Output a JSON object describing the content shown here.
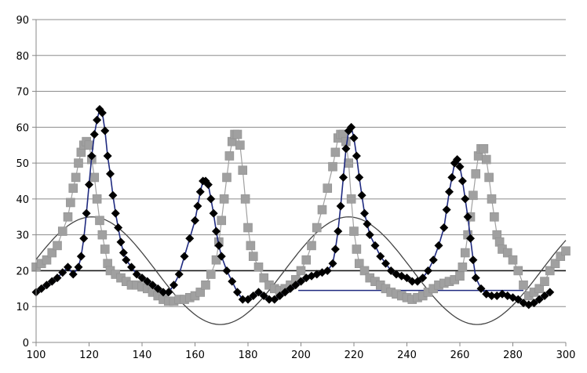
{
  "chart_data": {
    "type": "scatter",
    "xlim": [
      100,
      300
    ],
    "ylim": [
      0,
      90
    ],
    "x_ticks": [
      "100",
      "120",
      "140",
      "160",
      "180",
      "200",
      "220",
      "240",
      "260",
      "280",
      "300"
    ],
    "y_ticks": [
      "0",
      "10",
      "20",
      "30",
      "40",
      "50",
      "60",
      "70",
      "80",
      "90"
    ],
    "grid": true,
    "legend": "none",
    "colors": {
      "axis": "#888888",
      "grid": "#8c8c8c",
      "sine": "#444444",
      "threshold": "#1a1a1a",
      "series_a": "#000000",
      "series_a_line": "#1f2a80",
      "series_b": "#a0a0a0"
    },
    "sine_curve": {
      "mean": 20,
      "amplitude": 15,
      "period": 97,
      "phase_x": 121,
      "x_range": [
        100,
        300
      ]
    },
    "threshold_line": {
      "y": 20,
      "x_range": [
        100,
        300
      ]
    },
    "step_line": {
      "points": [
        [
          199,
          14.5
        ],
        [
          245,
          14.5
        ],
        [
          260,
          14.5
        ],
        [
          284,
          14.5
        ]
      ]
    },
    "series": [
      {
        "marker": "diamond",
        "points": [
          [
            100,
            14
          ],
          [
            102,
            15
          ],
          [
            104,
            16
          ],
          [
            106,
            17
          ],
          [
            108,
            18
          ],
          [
            110,
            19.5
          ],
          [
            112,
            21
          ],
          [
            114,
            19
          ],
          [
            116,
            21
          ],
          [
            117,
            24
          ],
          [
            118,
            29
          ],
          [
            119,
            36
          ],
          [
            120,
            44
          ],
          [
            121,
            52
          ],
          [
            122,
            58
          ],
          [
            123,
            62
          ],
          [
            124,
            65
          ],
          [
            125,
            64
          ],
          [
            126,
            59
          ],
          [
            127,
            52
          ],
          [
            128,
            47
          ],
          [
            129,
            41
          ],
          [
            130,
            36
          ],
          [
            131,
            32
          ],
          [
            132,
            28
          ],
          [
            133,
            25
          ],
          [
            134,
            23
          ],
          [
            136,
            21
          ],
          [
            138,
            19
          ],
          [
            140,
            18
          ],
          [
            142,
            17
          ],
          [
            144,
            16
          ],
          [
            146,
            15
          ],
          [
            148,
            14
          ],
          [
            150,
            14
          ],
          [
            152,
            16
          ],
          [
            154,
            19
          ],
          [
            156,
            24
          ],
          [
            158,
            29
          ],
          [
            160,
            34
          ],
          [
            161,
            38
          ],
          [
            162,
            42
          ],
          [
            163,
            45
          ],
          [
            164,
            45
          ],
          [
            165,
            44
          ],
          [
            166,
            40
          ],
          [
            167,
            36
          ],
          [
            168,
            31
          ],
          [
            169,
            27
          ],
          [
            170,
            24
          ],
          [
            172,
            20
          ],
          [
            174,
            17
          ],
          [
            176,
            14
          ],
          [
            178,
            12
          ],
          [
            180,
            12
          ],
          [
            182,
            13
          ],
          [
            184,
            14
          ],
          [
            186,
            13
          ],
          [
            188,
            12
          ],
          [
            190,
            12
          ],
          [
            192,
            13
          ],
          [
            194,
            14
          ],
          [
            196,
            15
          ],
          [
            198,
            16
          ],
          [
            200,
            17
          ],
          [
            202,
            18
          ],
          [
            204,
            18.5
          ],
          [
            206,
            19
          ],
          [
            208,
            19.5
          ],
          [
            210,
            20
          ],
          [
            212,
            22
          ],
          [
            213,
            26
          ],
          [
            214,
            31
          ],
          [
            215,
            38
          ],
          [
            216,
            46
          ],
          [
            217,
            54
          ],
          [
            218,
            59
          ],
          [
            219,
            60
          ],
          [
            220,
            57
          ],
          [
            221,
            52
          ],
          [
            222,
            46
          ],
          [
            223,
            41
          ],
          [
            224,
            36
          ],
          [
            225,
            33
          ],
          [
            226,
            30
          ],
          [
            228,
            27
          ],
          [
            230,
            24
          ],
          [
            232,
            22
          ],
          [
            234,
            20
          ],
          [
            236,
            19
          ],
          [
            238,
            18.5
          ],
          [
            240,
            18
          ],
          [
            242,
            17
          ],
          [
            244,
            17
          ],
          [
            246,
            18
          ],
          [
            248,
            20
          ],
          [
            250,
            23
          ],
          [
            252,
            27
          ],
          [
            254,
            32
          ],
          [
            255,
            37
          ],
          [
            256,
            42
          ],
          [
            257,
            46
          ],
          [
            258,
            50
          ],
          [
            259,
            51
          ],
          [
            260,
            49
          ],
          [
            261,
            45
          ],
          [
            262,
            40
          ],
          [
            263,
            35
          ],
          [
            264,
            29
          ],
          [
            265,
            23
          ],
          [
            266,
            18
          ],
          [
            268,
            15
          ],
          [
            270,
            13.5
          ],
          [
            272,
            13
          ],
          [
            274,
            13
          ],
          [
            276,
            13.5
          ],
          [
            278,
            13
          ],
          [
            280,
            12.5
          ],
          [
            282,
            12
          ],
          [
            284,
            11
          ],
          [
            286,
            10.5
          ],
          [
            288,
            11
          ],
          [
            290,
            12
          ],
          [
            292,
            13
          ],
          [
            294,
            14
          ]
        ]
      },
      {
        "marker": "square",
        "points": [
          [
            100,
            21
          ],
          [
            102,
            22
          ],
          [
            104,
            23
          ],
          [
            106,
            25
          ],
          [
            108,
            27
          ],
          [
            110,
            31
          ],
          [
            112,
            35
          ],
          [
            113,
            39
          ],
          [
            114,
            43
          ],
          [
            115,
            46
          ],
          [
            116,
            50
          ],
          [
            117,
            53
          ],
          [
            118,
            55
          ],
          [
            119,
            56
          ],
          [
            120,
            55
          ],
          [
            121,
            51
          ],
          [
            122,
            46
          ],
          [
            123,
            40
          ],
          [
            124,
            34
          ],
          [
            125,
            30
          ],
          [
            126,
            26
          ],
          [
            127,
            22
          ],
          [
            128,
            20
          ],
          [
            130,
            19
          ],
          [
            132,
            18
          ],
          [
            134,
            17
          ],
          [
            136,
            16
          ],
          [
            138,
            16
          ],
          [
            140,
            15.5
          ],
          [
            142,
            15
          ],
          [
            144,
            14
          ],
          [
            146,
            13
          ],
          [
            148,
            12
          ],
          [
            150,
            11.5
          ],
          [
            152,
            11.5
          ],
          [
            154,
            12
          ],
          [
            156,
            12
          ],
          [
            158,
            12.5
          ],
          [
            160,
            13
          ],
          [
            162,
            14
          ],
          [
            164,
            16
          ],
          [
            166,
            19
          ],
          [
            168,
            23
          ],
          [
            169,
            28
          ],
          [
            170,
            34
          ],
          [
            171,
            40
          ],
          [
            172,
            46
          ],
          [
            173,
            52
          ],
          [
            174,
            56
          ],
          [
            175,
            58
          ],
          [
            176,
            58
          ],
          [
            177,
            55
          ],
          [
            178,
            48
          ],
          [
            179,
            40
          ],
          [
            180,
            32
          ],
          [
            181,
            27
          ],
          [
            182,
            24
          ],
          [
            184,
            21
          ],
          [
            186,
            18
          ],
          [
            188,
            16
          ],
          [
            190,
            15
          ],
          [
            192,
            14.5
          ],
          [
            194,
            15
          ],
          [
            196,
            16
          ],
          [
            198,
            17.5
          ],
          [
            200,
            20
          ],
          [
            202,
            23
          ],
          [
            204,
            27
          ],
          [
            206,
            32
          ],
          [
            208,
            37
          ],
          [
            210,
            43
          ],
          [
            212,
            49
          ],
          [
            213,
            53
          ],
          [
            214,
            57
          ],
          [
            215,
            58
          ],
          [
            216,
            58
          ],
          [
            217,
            56
          ],
          [
            218,
            50
          ],
          [
            219,
            40
          ],
          [
            220,
            31
          ],
          [
            221,
            26
          ],
          [
            222,
            22
          ],
          [
            224,
            20
          ],
          [
            226,
            18
          ],
          [
            228,
            17
          ],
          [
            230,
            16
          ],
          [
            232,
            15
          ],
          [
            234,
            14
          ],
          [
            236,
            13.5
          ],
          [
            238,
            13
          ],
          [
            240,
            12.5
          ],
          [
            242,
            12
          ],
          [
            244,
            12.5
          ],
          [
            246,
            13
          ],
          [
            248,
            14
          ],
          [
            250,
            15
          ],
          [
            252,
            16
          ],
          [
            254,
            16.5
          ],
          [
            256,
            17
          ],
          [
            258,
            17.5
          ],
          [
            260,
            18.5
          ],
          [
            261,
            21
          ],
          [
            262,
            25
          ],
          [
            263,
            30
          ],
          [
            264,
            35
          ],
          [
            265,
            41
          ],
          [
            266,
            47
          ],
          [
            267,
            52
          ],
          [
            268,
            54
          ],
          [
            269,
            54
          ],
          [
            270,
            51
          ],
          [
            271,
            46
          ],
          [
            272,
            40
          ],
          [
            273,
            35
          ],
          [
            274,
            30
          ],
          [
            275,
            28
          ],
          [
            276,
            26
          ],
          [
            278,
            25
          ],
          [
            280,
            23
          ],
          [
            282,
            20
          ],
          [
            284,
            16
          ],
          [
            286,
            13
          ],
          [
            288,
            14
          ],
          [
            290,
            15
          ],
          [
            292,
            17
          ],
          [
            294,
            20
          ],
          [
            296,
            22
          ],
          [
            298,
            24
          ],
          [
            300,
            25.5
          ]
        ]
      }
    ]
  }
}
